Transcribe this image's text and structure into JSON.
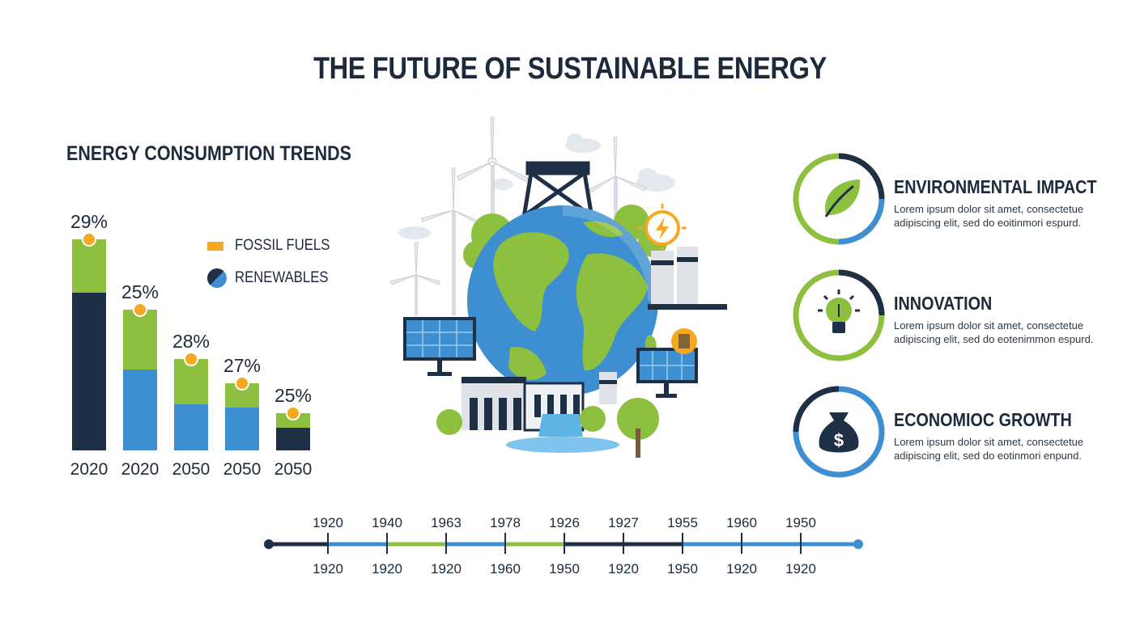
{
  "title": "THE FUTURE OF SUSTAINABLE ENERGY",
  "colors": {
    "navy": "#1f2f45",
    "blue": "#3d8fd1",
    "green": "#8dc03f",
    "orange": "#f6a821"
  },
  "legend": {
    "fossil": "FOSSIL FUELS",
    "renewables": "RENEWABLES"
  },
  "chart_data": {
    "type": "bar",
    "title": "ENERGY CONSUMPTION TRENDS",
    "categories": [
      "2020",
      "2020",
      "2050",
      "2050",
      "2050"
    ],
    "labels": [
      "29%",
      "25%",
      "28%",
      "27%",
      "25%"
    ],
    "series": [
      {
        "name": "FOSSIL FUELS",
        "color_top": "#8dc03f",
        "values_lower": [
          195,
          100,
          57,
          53,
          28
        ],
        "values_upper": [
          66,
          74,
          56,
          30,
          18
        ],
        "lower_colors": [
          "#1f2f45",
          "#3d8fd1",
          "#3d8fd1",
          "#3d8fd1",
          "#1f2f45"
        ]
      }
    ],
    "ylim": [
      0,
      270
    ]
  },
  "features": [
    {
      "title": "ENVIRONMENTAL IMPACT",
      "desc": "Lorem ipsum dolor sit amet, consectetue adipiscing elit, sed do eoitinmori espurd.",
      "icon": "leaf-icon"
    },
    {
      "title": "INNOVATION",
      "desc": "Lorem ipsum dolor sit amet, consectetue adipiscing elit, sed do eotenimmon espurd.",
      "icon": "lightbulb-icon"
    },
    {
      "title": "ECONOMIOC GROWTH",
      "desc": "Lorem ipsum dolor sit amet, consectetue adipiscing elit, sed do eotinmori enpund.",
      "icon": "money-bag-icon"
    }
  ],
  "timeline": {
    "top_labels": [
      "1920",
      "1940",
      "1963",
      "1978",
      "1926",
      "1927",
      "1955",
      "1960",
      "1950"
    ],
    "bottom_labels": [
      "1920",
      "1920",
      "1920",
      "1960",
      "1950",
      "1920",
      "1950",
      "1920",
      "1920"
    ],
    "segment_colors": [
      "#3d8fd1",
      "#3d8fd1",
      "#8dc03f",
      "#3d8fd1",
      "#8dc03f",
      "#1f2f45",
      "#1f2f45",
      "#3d8fd1",
      "#3d8fd1"
    ]
  }
}
